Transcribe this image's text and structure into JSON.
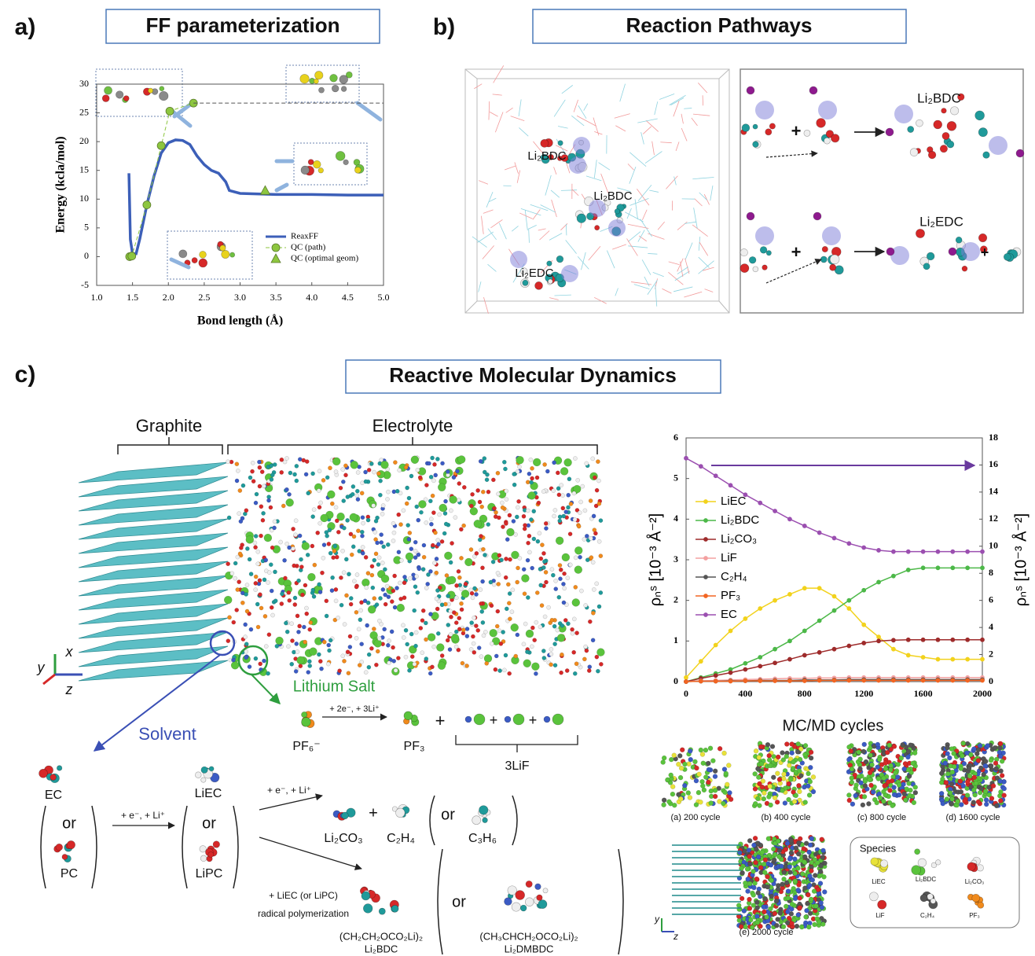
{
  "panels": {
    "a": {
      "label": "a)",
      "title": "FF parameterization"
    },
    "b": {
      "label": "b)",
      "title": "Reaction Pathways",
      "box_labels": [
        "Li₂BDC",
        "Li₂BDC",
        "Li₂EDC"
      ],
      "scheme": {
        "plus": "+",
        "bdc": "Li₂BDC",
        "edc": "Li₂EDC"
      }
    },
    "c": {
      "label": "c)",
      "title": "Reactive Molecular Dynamics",
      "graphite": "Graphite",
      "electrolyte": "Electrolyte",
      "axes": [
        "x",
        "y",
        "z"
      ],
      "salt": "Lithium Salt",
      "solvent": "Solvent",
      "salt_reaction": {
        "reactant": "PF₆⁻",
        "condition": "+ 2e⁻, + 3Li⁺",
        "product": "PF₃",
        "plus": "+",
        "lif": "3LiF"
      },
      "solvent_reaction": {
        "ec": "EC",
        "or": "or",
        "pc": "PC",
        "condition": "+ e⁻, + Li⁺",
        "liec": "LiEC",
        "lipc": "LiPC",
        "li2co3": "Li₂CO₃",
        "plus": "+",
        "c2h4": "C₂H₄",
        "c3h6": "C₃H₆",
        "condition2": "+ LiEC (or LiPC)",
        "condition3": "radical polymerization",
        "bdc_formula": "(CH₂CH₂OCO₂Li)₂",
        "bdc": "Li₂BDC",
        "dmbdc_formula": "(CH₃CHCH₂OCO₂Li)₂",
        "dmbdc": "Li₂DMBDC"
      },
      "mcmd": {
        "title": "MC/MD cycles",
        "snapshots": [
          "(a) 200 cycle",
          "(b) 400 cycle",
          "(c) 800 cycle",
          "(d) 1600 cycle",
          "(e) 2000 cycle"
        ],
        "axes": [
          "y",
          "z"
        ],
        "species_title": "Species",
        "species": [
          "LiEC",
          "Li₂BDC",
          "Li₂CO₃",
          "LiF",
          "C₂H₄",
          "PF₃"
        ]
      }
    }
  },
  "chart_data": [
    {
      "type": "line",
      "xlabel": "Bond length (Å)",
      "ylabel": "Energy (kcla/mol)",
      "xlim": [
        1,
        5
      ],
      "ylim": [
        -5,
        30
      ],
      "xticks": [
        {
          "value": 1,
          "label": "1.0"
        },
        1.5,
        {
          "value": 2,
          "label": "2.0"
        },
        2.5,
        {
          "value": 3,
          "label": "3.0"
        },
        3.5,
        {
          "value": 4,
          "label": "4.0"
        },
        4.5,
        {
          "value": 5,
          "label": "5.0"
        }
      ],
      "yticks": [
        -5,
        0,
        5,
        10,
        15,
        20,
        25,
        30
      ],
      "grid": false,
      "legend": "lower right",
      "series": [
        {
          "name": "ReaxFF",
          "color": "#3c5fb8",
          "line": "solid",
          "marker": null,
          "x": [
            1.45,
            1.47,
            1.5,
            1.55,
            1.6,
            1.7,
            1.8,
            1.9,
            2.0,
            2.1,
            2.2,
            2.3,
            2.4,
            2.5,
            2.6,
            2.7,
            2.8,
            2.85,
            3.0,
            3.5,
            4.0,
            4.5,
            5.0
          ],
          "values": [
            14.5,
            3,
            0.5,
            0.5,
            3,
            9,
            14,
            18,
            19.8,
            20.3,
            20.2,
            19.5,
            17.5,
            16,
            15,
            14.5,
            13,
            11.5,
            11,
            10.8,
            10.8,
            10.7,
            10.7
          ]
        },
        {
          "name": "QC (path)",
          "color": "#8dc63f",
          "line": "dashed",
          "marker": "circle",
          "x": [
            1.46,
            1.49,
            1.7,
            1.9,
            2.02,
            2.35
          ],
          "values": [
            0,
            0.1,
            9,
            19.3,
            25.3,
            26.7
          ]
        },
        {
          "name": "QC (optimal geom)",
          "color": "#8dc63f",
          "line": "none",
          "marker": "triangle",
          "x": [
            3.35
          ],
          "values": [
            11.5
          ]
        },
        {
          "color": "#555555",
          "line": "dashed",
          "marker": null,
          "x": [
            2.35,
            5.0
          ],
          "values": [
            26.7,
            26.7
          ]
        }
      ]
    },
    {
      "type": "line",
      "ylabel": "ρₙˢ [10⁻³ Å⁻²]",
      "y2label": "ρₙˢ [10⁻³ Å⁻²]",
      "xlim": [
        0,
        2000
      ],
      "ylim": [
        0,
        6
      ],
      "y2lim": [
        0,
        18
      ],
      "xticks": [
        0,
        400,
        800,
        1200,
        1600,
        2000
      ],
      "yticks": [
        0,
        1,
        2,
        3,
        4,
        5,
        6
      ],
      "y2ticks": [
        0,
        2,
        4,
        6,
        8,
        10,
        12,
        14,
        16,
        18
      ],
      "grid": false,
      "legend": "center left",
      "x": [
        0,
        100,
        200,
        300,
        400,
        500,
        600,
        700,
        800,
        900,
        1000,
        1100,
        1200,
        1300,
        1400,
        1500,
        1600,
        1700,
        1800,
        1900,
        2000
      ],
      "series": [
        {
          "name": "LiEC",
          "color": "#f2d21c",
          "line": "solid",
          "marker": "circle",
          "values": [
            0.1,
            0.5,
            0.9,
            1.25,
            1.55,
            1.8,
            2.0,
            2.15,
            2.3,
            2.3,
            2.1,
            1.8,
            1.4,
            1.1,
            0.8,
            0.65,
            0.6,
            0.55,
            0.55,
            0.55,
            0.55
          ]
        },
        {
          "name": "Li₂BDC",
          "color": "#4cb848",
          "line": "solid",
          "marker": "circle",
          "values": [
            0,
            0.1,
            0.2,
            0.3,
            0.45,
            0.6,
            0.8,
            1.0,
            1.25,
            1.5,
            1.75,
            2.0,
            2.25,
            2.45,
            2.6,
            2.75,
            2.8,
            2.8,
            2.8,
            2.8,
            2.8
          ]
        },
        {
          "name": "Li₂CO₃",
          "color": "#9e2b2b",
          "line": "solid",
          "marker": "circle",
          "values": [
            0,
            0.08,
            0.15,
            0.22,
            0.3,
            0.38,
            0.46,
            0.55,
            0.65,
            0.72,
            0.8,
            0.88,
            0.95,
            1.0,
            1.02,
            1.03,
            1.03,
            1.03,
            1.03,
            1.03,
            1.03
          ]
        },
        {
          "name": "LiF",
          "color": "#f4a0a0",
          "line": "solid",
          "marker": "circle",
          "values": [
            0,
            0.02,
            0.03,
            0.04,
            0.05,
            0.06,
            0.07,
            0.08,
            0.08,
            0.09,
            0.09,
            0.1,
            0.1,
            0.1,
            0.1,
            0.1,
            0.1,
            0.1,
            0.1,
            0.1,
            0.1
          ]
        },
        {
          "name": "C₂H₄",
          "color": "#555555",
          "line": "solid",
          "marker": "circle",
          "values": [
            0,
            0.01,
            0.01,
            0.02,
            0.02,
            0.03,
            0.03,
            0.03,
            0.04,
            0.04,
            0.04,
            0.05,
            0.05,
            0.05,
            0.05,
            0.05,
            0.05,
            0.05,
            0.05,
            0.05,
            0.05
          ]
        },
        {
          "name": "PF₃",
          "color": "#f26522",
          "line": "solid",
          "marker": "circle",
          "values": [
            0,
            0.01,
            0.01,
            0.01,
            0.02,
            0.02,
            0.02,
            0.02,
            0.02,
            0.03,
            0.03,
            0.03,
            0.03,
            0.03,
            0.03,
            0.03,
            0.03,
            0.03,
            0.03,
            0.03,
            0.03
          ]
        },
        {
          "name": "EC",
          "color": "#9b4fb0",
          "line": "solid",
          "marker": "circle",
          "axis": "y2",
          "values": [
            16.5,
            15.9,
            15.2,
            14.5,
            13.8,
            13.2,
            12.6,
            12.0,
            11.5,
            11.0,
            10.6,
            10.2,
            9.9,
            9.7,
            9.6,
            9.6,
            9.6,
            9.6,
            9.6,
            9.6,
            9.6
          ]
        }
      ]
    }
  ]
}
